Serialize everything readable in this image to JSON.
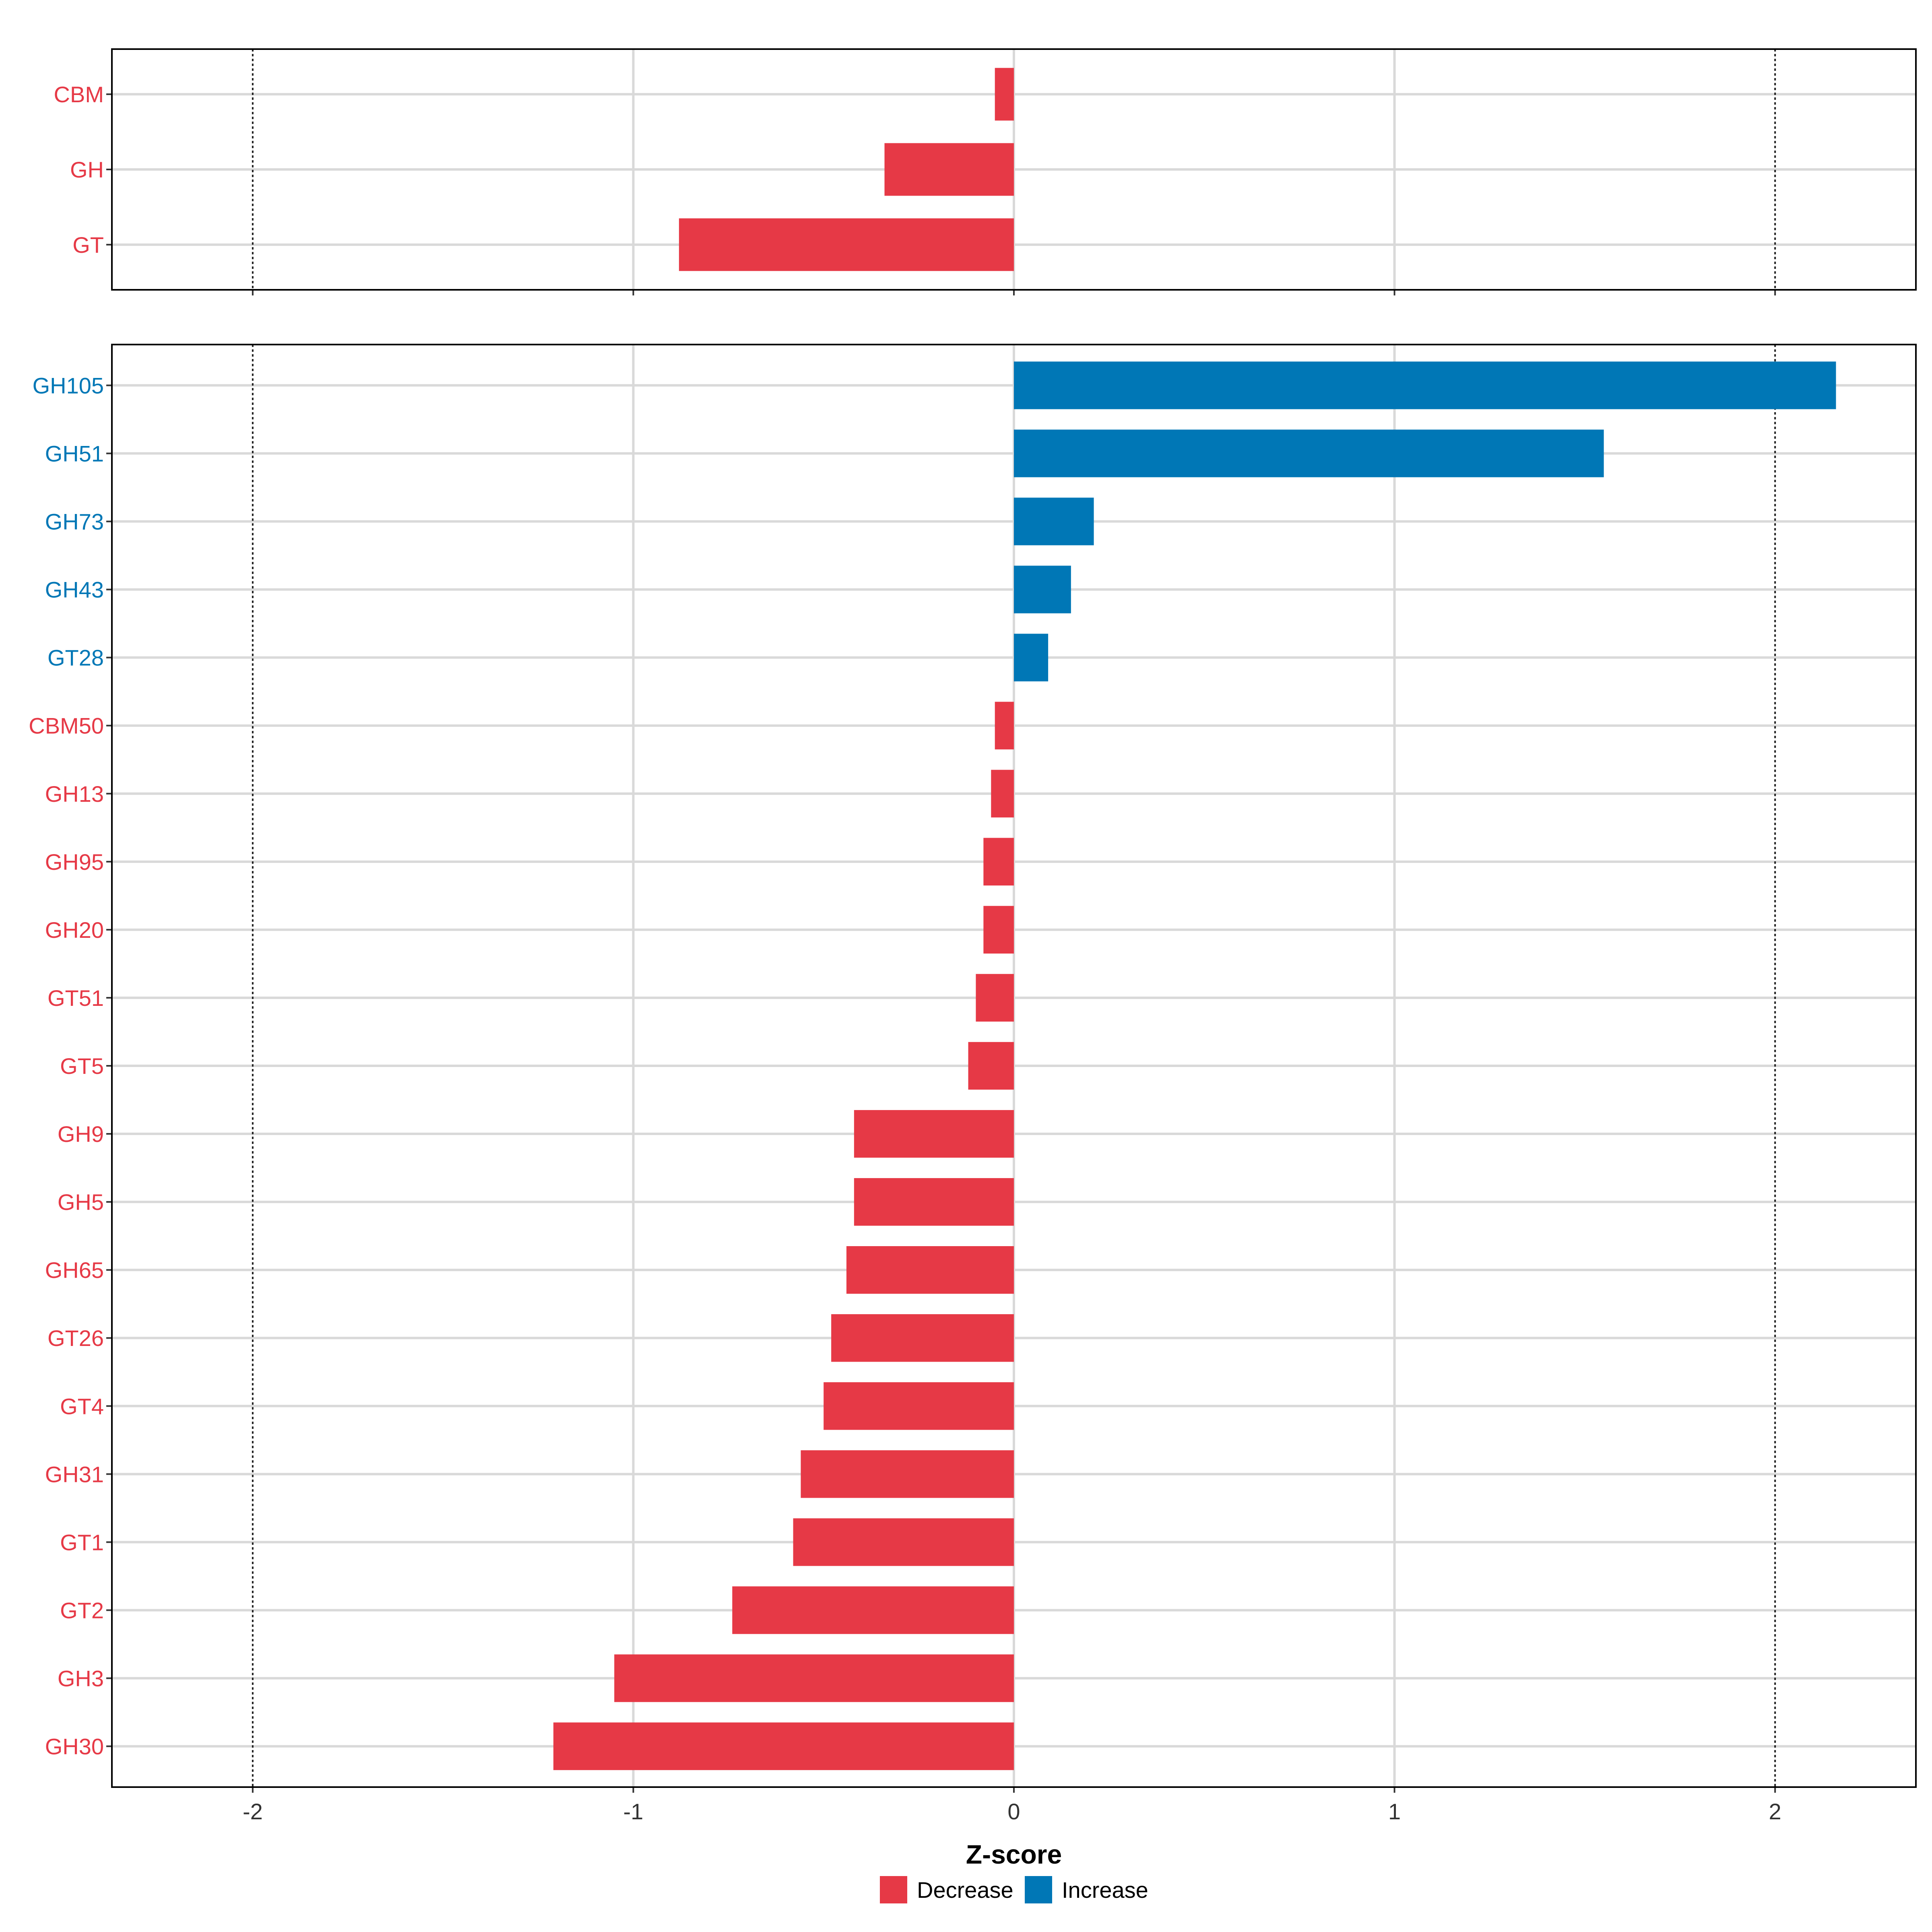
{
  "chart_data": {
    "type": "bar",
    "orientation": "horizontal",
    "xlabel": "Z-score",
    "xlim": [
      -2.37,
      2.37
    ],
    "x_ticks": [
      "-2",
      "-1",
      "0",
      "1",
      "2"
    ],
    "x_tick_values": [
      -2,
      -1,
      0,
      1,
      2
    ],
    "reference_lines": [
      -2,
      2
    ],
    "grid": true,
    "legend_placement": "bottom",
    "colors": {
      "Decrease": "#E63946",
      "Increase": "#0077B6"
    },
    "legend": [
      {
        "name": "Decrease",
        "color": "#E63946"
      },
      {
        "name": "Increase",
        "color": "#0077B6"
      }
    ],
    "panels": [
      {
        "categories": [
          "CBM",
          "GH",
          "GT"
        ],
        "values": [
          -0.05,
          -0.34,
          -0.88
        ],
        "groups": [
          "Decrease",
          "Decrease",
          "Decrease"
        ]
      },
      {
        "categories": [
          "GH105",
          "GH51",
          "GH73",
          "GH43",
          "GT28",
          "CBM50",
          "GH13",
          "GH95",
          "GH20",
          "GT51",
          "GT5",
          "GH9",
          "GH5",
          "GH65",
          "GT26",
          "GT4",
          "GH31",
          "GT1",
          "GT2",
          "GH3",
          "GH30"
        ],
        "values": [
          2.16,
          1.55,
          0.21,
          0.15,
          0.09,
          -0.05,
          -0.06,
          -0.08,
          -0.08,
          -0.1,
          -0.12,
          -0.42,
          -0.42,
          -0.44,
          -0.48,
          -0.5,
          -0.56,
          -0.58,
          -0.74,
          -1.05,
          -1.21
        ],
        "groups": [
          "Increase",
          "Increase",
          "Increase",
          "Increase",
          "Increase",
          "Decrease",
          "Decrease",
          "Decrease",
          "Decrease",
          "Decrease",
          "Decrease",
          "Decrease",
          "Decrease",
          "Decrease",
          "Decrease",
          "Decrease",
          "Decrease",
          "Decrease",
          "Decrease",
          "Decrease",
          "Decrease"
        ]
      }
    ]
  }
}
